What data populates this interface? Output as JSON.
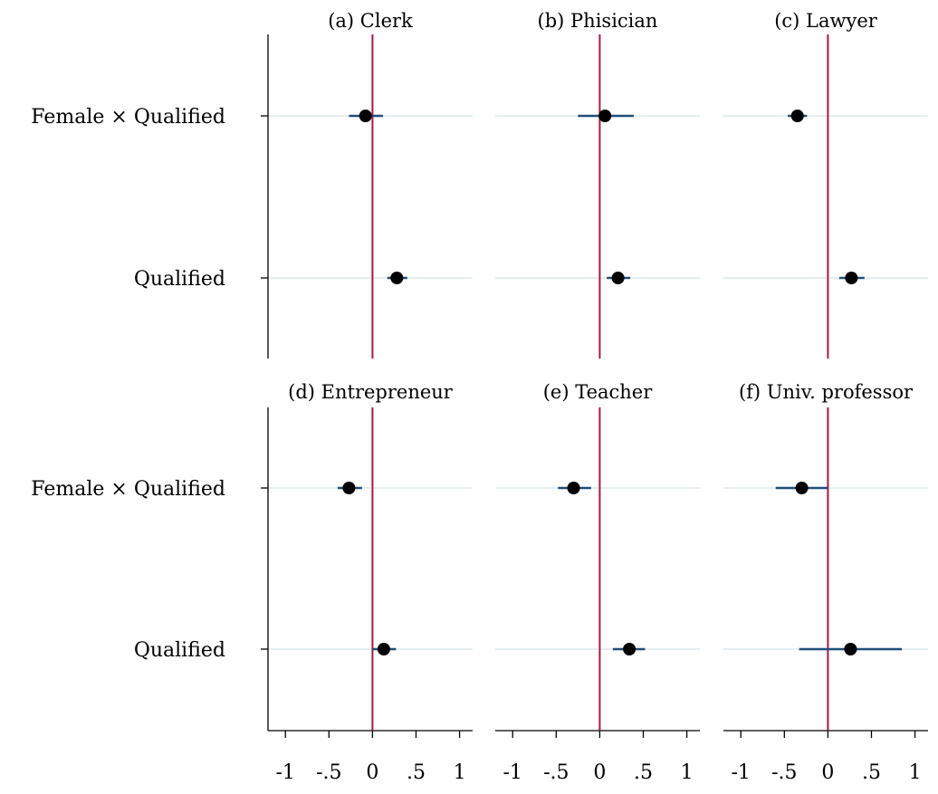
{
  "chart_data": {
    "type": "scatter",
    "description_kind": "coefficient plot",
    "rows": [
      "Female × Qualified",
      "Qualified"
    ],
    "x_ticks": [
      -1,
      -0.5,
      0,
      0.5,
      1
    ],
    "x_tick_labels": [
      "-1",
      "-.5",
      "0",
      ".5",
      "1"
    ],
    "xlim": [
      -1.2,
      1.15
    ],
    "reference_line_x": 0,
    "colors": {
      "point": "#000000",
      "ci": "#1f4e79",
      "reference_line": "#b0163f",
      "row_grid": "#e6eef0",
      "axis": "#000000"
    },
    "panels": [
      {
        "title": "(a) Clerk",
        "estimates": [
          {
            "row": "Female × Qualified",
            "value": -0.08,
            "ci": [
              -0.27,
              0.12
            ]
          },
          {
            "row": "Qualified",
            "value": 0.28,
            "ci": [
              0.17,
              0.4
            ]
          }
        ]
      },
      {
        "title": "(b) Phisician",
        "estimates": [
          {
            "row": "Female × Qualified",
            "value": 0.06,
            "ci": [
              -0.25,
              0.39
            ]
          },
          {
            "row": "Qualified",
            "value": 0.21,
            "ci": [
              0.08,
              0.35
            ]
          }
        ]
      },
      {
        "title": "(c) Lawyer",
        "estimates": [
          {
            "row": "Female × Qualified",
            "value": -0.35,
            "ci": [
              -0.46,
              -0.24
            ]
          },
          {
            "row": "Qualified",
            "value": 0.27,
            "ci": [
              0.13,
              0.42
            ]
          }
        ]
      },
      {
        "title": "(d) Entrepreneur",
        "estimates": [
          {
            "row": "Female × Qualified",
            "value": -0.27,
            "ci": [
              -0.4,
              -0.12
            ]
          },
          {
            "row": "Qualified",
            "value": 0.13,
            "ci": [
              0.0,
              0.27
            ]
          }
        ]
      },
      {
        "title": "(e) Teacher",
        "estimates": [
          {
            "row": "Female × Qualified",
            "value": -0.3,
            "ci": [
              -0.48,
              -0.1
            ]
          },
          {
            "row": "Qualified",
            "value": 0.34,
            "ci": [
              0.15,
              0.52
            ]
          }
        ]
      },
      {
        "title": "(f) Univ. professor",
        "estimates": [
          {
            "row": "Female × Qualified",
            "value": -0.3,
            "ci": [
              -0.6,
              0.0
            ]
          },
          {
            "row": "Qualified",
            "value": 0.26,
            "ci": [
              -0.33,
              0.85
            ]
          }
        ]
      }
    ]
  }
}
